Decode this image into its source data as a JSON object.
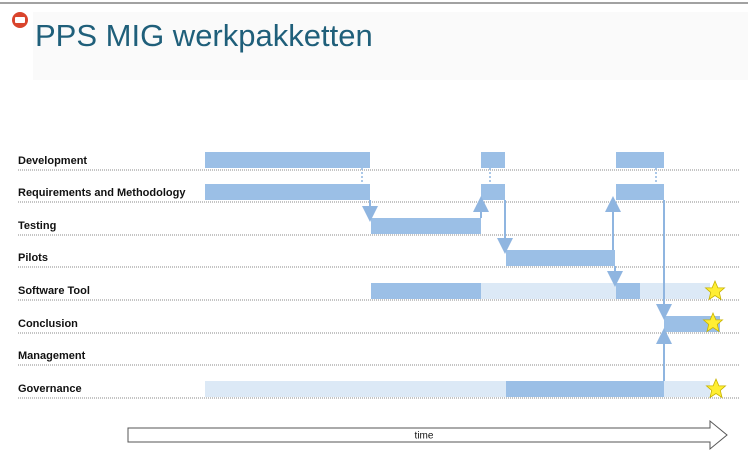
{
  "header": {
    "title": "PPS MIG werkpakketten"
  },
  "rows": [
    "Development",
    "Requirements and Methodology",
    "Testing",
    "Pilots",
    "Software Tool",
    "Conclusion",
    "Management",
    "Governance"
  ],
  "axis": {
    "label": "time"
  }
}
